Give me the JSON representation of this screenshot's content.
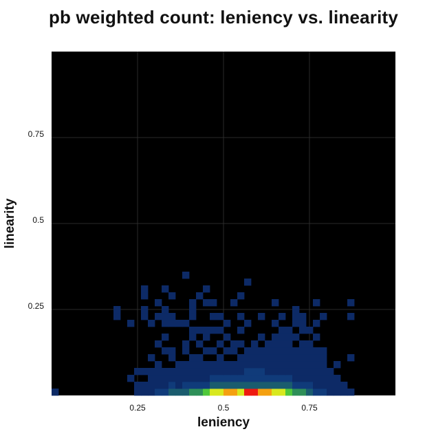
{
  "chart_data": {
    "type": "heatmap",
    "title": "pb weighted count: leniency vs. linearity",
    "xlabel": "leniency",
    "ylabel": "linearity",
    "xlim": [
      0,
      1
    ],
    "ylim": [
      0,
      1
    ],
    "x_ticks": [
      "0.25",
      "0.5",
      "0.75"
    ],
    "y_ticks": [
      "0.25",
      "0.5",
      "0.75"
    ],
    "grid": true,
    "background": "#000000",
    "bin_size": 0.02,
    "colorscale": [
      "#0d2a66",
      "#103b7a",
      "#1a5c6e",
      "#2e8f58",
      "#4fc83a",
      "#d8e81e",
      "#f4a010",
      "#ee1a10"
    ],
    "cells": [
      [
        0,
        0,
        1
      ],
      [
        12,
        0,
        1
      ],
      [
        13,
        0,
        1
      ],
      [
        14,
        0,
        1
      ],
      [
        15,
        0,
        2
      ],
      [
        16,
        0,
        2
      ],
      [
        17,
        0,
        3
      ],
      [
        18,
        0,
        3
      ],
      [
        19,
        0,
        3
      ],
      [
        20,
        0,
        4
      ],
      [
        21,
        0,
        4
      ],
      [
        22,
        0,
        5
      ],
      [
        23,
        0,
        6
      ],
      [
        24,
        0,
        6
      ],
      [
        25,
        0,
        7
      ],
      [
        26,
        0,
        7
      ],
      [
        27,
        0,
        6
      ],
      [
        28,
        0,
        8
      ],
      [
        29,
        0,
        8
      ],
      [
        30,
        0,
        7
      ],
      [
        31,
        0,
        7
      ],
      [
        32,
        0,
        6
      ],
      [
        33,
        0,
        6
      ],
      [
        34,
        0,
        5
      ],
      [
        35,
        0,
        4
      ],
      [
        36,
        0,
        4
      ],
      [
        37,
        0,
        3
      ],
      [
        38,
        0,
        2
      ],
      [
        39,
        0,
        2
      ],
      [
        40,
        0,
        1
      ],
      [
        41,
        0,
        1
      ],
      [
        42,
        0,
        1
      ],
      [
        43,
        0,
        1
      ],
      [
        12,
        1,
        1
      ],
      [
        13,
        1,
        1
      ],
      [
        14,
        1,
        1
      ],
      [
        15,
        1,
        1
      ],
      [
        16,
        1,
        1
      ],
      [
        17,
        1,
        2
      ],
      [
        18,
        1,
        1
      ],
      [
        19,
        1,
        2
      ],
      [
        20,
        1,
        2
      ],
      [
        21,
        1,
        2
      ],
      [
        22,
        1,
        2
      ],
      [
        23,
        1,
        3
      ],
      [
        24,
        1,
        3
      ],
      [
        25,
        1,
        3
      ],
      [
        26,
        1,
        3
      ],
      [
        27,
        1,
        3
      ],
      [
        28,
        1,
        3
      ],
      [
        29,
        1,
        3
      ],
      [
        30,
        1,
        3
      ],
      [
        31,
        1,
        3
      ],
      [
        32,
        1,
        3
      ],
      [
        33,
        1,
        3
      ],
      [
        34,
        1,
        3
      ],
      [
        35,
        1,
        2
      ],
      [
        36,
        1,
        2
      ],
      [
        37,
        1,
        2
      ],
      [
        38,
        1,
        1
      ],
      [
        39,
        1,
        1
      ],
      [
        40,
        1,
        1
      ],
      [
        41,
        1,
        1
      ],
      [
        42,
        1,
        1
      ],
      [
        11,
        2,
        1
      ],
      [
        14,
        2,
        1
      ],
      [
        15,
        2,
        1
      ],
      [
        16,
        2,
        1
      ],
      [
        17,
        2,
        1
      ],
      [
        18,
        2,
        1
      ],
      [
        19,
        2,
        1
      ],
      [
        20,
        2,
        1
      ],
      [
        21,
        2,
        1
      ],
      [
        22,
        2,
        1
      ],
      [
        23,
        2,
        2
      ],
      [
        24,
        2,
        2
      ],
      [
        25,
        2,
        2
      ],
      [
        26,
        2,
        2
      ],
      [
        27,
        2,
        2
      ],
      [
        28,
        2,
        2
      ],
      [
        29,
        2,
        2
      ],
      [
        30,
        2,
        2
      ],
      [
        31,
        2,
        2
      ],
      [
        32,
        2,
        2
      ],
      [
        33,
        2,
        2
      ],
      [
        34,
        2,
        2
      ],
      [
        35,
        2,
        1
      ],
      [
        36,
        2,
        1
      ],
      [
        37,
        2,
        1
      ],
      [
        38,
        2,
        1
      ],
      [
        39,
        2,
        1
      ],
      [
        40,
        2,
        1
      ],
      [
        41,
        2,
        1
      ],
      [
        12,
        3,
        1
      ],
      [
        13,
        3,
        1
      ],
      [
        14,
        3,
        1
      ],
      [
        15,
        3,
        1
      ],
      [
        16,
        3,
        1
      ],
      [
        17,
        3,
        1
      ],
      [
        18,
        3,
        1
      ],
      [
        19,
        3,
        1
      ],
      [
        20,
        3,
        1
      ],
      [
        21,
        3,
        1
      ],
      [
        22,
        3,
        1
      ],
      [
        23,
        3,
        1
      ],
      [
        24,
        3,
        1
      ],
      [
        25,
        3,
        1
      ],
      [
        26,
        3,
        1
      ],
      [
        27,
        3,
        1
      ],
      [
        28,
        3,
        2
      ],
      [
        29,
        3,
        2
      ],
      [
        30,
        3,
        2
      ],
      [
        31,
        3,
        1
      ],
      [
        32,
        3,
        1
      ],
      [
        33,
        3,
        1
      ],
      [
        34,
        3,
        1
      ],
      [
        35,
        3,
        1
      ],
      [
        36,
        3,
        1
      ],
      [
        37,
        3,
        1
      ],
      [
        38,
        3,
        1
      ],
      [
        39,
        3,
        1
      ],
      [
        40,
        3,
        1
      ],
      [
        15,
        4,
        1
      ],
      [
        18,
        4,
        1
      ],
      [
        19,
        4,
        1
      ],
      [
        20,
        4,
        1
      ],
      [
        21,
        4,
        1
      ],
      [
        22,
        4,
        1
      ],
      [
        23,
        4,
        1
      ],
      [
        24,
        4,
        1
      ],
      [
        25,
        4,
        1
      ],
      [
        26,
        4,
        1
      ],
      [
        27,
        4,
        1
      ],
      [
        28,
        4,
        1
      ],
      [
        29,
        4,
        1
      ],
      [
        30,
        4,
        1
      ],
      [
        31,
        4,
        1
      ],
      [
        32,
        4,
        1
      ],
      [
        33,
        4,
        1
      ],
      [
        34,
        4,
        1
      ],
      [
        35,
        4,
        1
      ],
      [
        36,
        4,
        1
      ],
      [
        37,
        4,
        1
      ],
      [
        38,
        4,
        1
      ],
      [
        39,
        4,
        1
      ],
      [
        41,
        4,
        1
      ],
      [
        14,
        5,
        1
      ],
      [
        17,
        5,
        1
      ],
      [
        20,
        5,
        1
      ],
      [
        21,
        5,
        1
      ],
      [
        24,
        5,
        1
      ],
      [
        27,
        5,
        1
      ],
      [
        28,
        5,
        1
      ],
      [
        29,
        5,
        1
      ],
      [
        30,
        5,
        1
      ],
      [
        31,
        5,
        1
      ],
      [
        32,
        5,
        1
      ],
      [
        33,
        5,
        1
      ],
      [
        34,
        5,
        1
      ],
      [
        35,
        5,
        1
      ],
      [
        36,
        5,
        1
      ],
      [
        37,
        5,
        1
      ],
      [
        38,
        5,
        1
      ],
      [
        39,
        5,
        1
      ],
      [
        43,
        5,
        1
      ],
      [
        16,
        6,
        1
      ],
      [
        17,
        6,
        1
      ],
      [
        19,
        6,
        1
      ],
      [
        22,
        6,
        1
      ],
      [
        23,
        6,
        1
      ],
      [
        25,
        6,
        1
      ],
      [
        26,
        6,
        1
      ],
      [
        28,
        6,
        1
      ],
      [
        29,
        6,
        1
      ],
      [
        30,
        6,
        1
      ],
      [
        31,
        6,
        1
      ],
      [
        32,
        6,
        1
      ],
      [
        33,
        6,
        1
      ],
      [
        34,
        6,
        1
      ],
      [
        35,
        6,
        1
      ],
      [
        36,
        6,
        1
      ],
      [
        37,
        6,
        1
      ],
      [
        38,
        6,
        1
      ],
      [
        39,
        6,
        1
      ],
      [
        15,
        7,
        1
      ],
      [
        19,
        7,
        1
      ],
      [
        21,
        7,
        1
      ],
      [
        24,
        7,
        1
      ],
      [
        26,
        7,
        1
      ],
      [
        27,
        7,
        1
      ],
      [
        29,
        7,
        1
      ],
      [
        31,
        7,
        1
      ],
      [
        32,
        7,
        1
      ],
      [
        33,
        7,
        1
      ],
      [
        34,
        7,
        1
      ],
      [
        36,
        7,
        1
      ],
      [
        37,
        7,
        1
      ],
      [
        16,
        8,
        1
      ],
      [
        20,
        8,
        1
      ],
      [
        22,
        8,
        1
      ],
      [
        25,
        8,
        1
      ],
      [
        30,
        8,
        1
      ],
      [
        32,
        8,
        1
      ],
      [
        33,
        8,
        1
      ],
      [
        34,
        8,
        1
      ],
      [
        35,
        8,
        1
      ],
      [
        38,
        8,
        1
      ],
      [
        20,
        9,
        1
      ],
      [
        21,
        9,
        1
      ],
      [
        22,
        9,
        1
      ],
      [
        23,
        9,
        1
      ],
      [
        24,
        9,
        1
      ],
      [
        27,
        9,
        1
      ],
      [
        33,
        9,
        1
      ],
      [
        34,
        9,
        1
      ],
      [
        36,
        9,
        1
      ],
      [
        37,
        9,
        1
      ],
      [
        11,
        10,
        1
      ],
      [
        14,
        10,
        1
      ],
      [
        16,
        10,
        1
      ],
      [
        17,
        10,
        1
      ],
      [
        18,
        10,
        1
      ],
      [
        19,
        10,
        1
      ],
      [
        25,
        10,
        1
      ],
      [
        28,
        10,
        1
      ],
      [
        32,
        10,
        1
      ],
      [
        35,
        10,
        1
      ],
      [
        36,
        10,
        1
      ],
      [
        38,
        10,
        1
      ],
      [
        9,
        11,
        1
      ],
      [
        13,
        11,
        1
      ],
      [
        15,
        11,
        1
      ],
      [
        16,
        11,
        1
      ],
      [
        17,
        11,
        1
      ],
      [
        20,
        11,
        1
      ],
      [
        23,
        11,
        1
      ],
      [
        24,
        11,
        1
      ],
      [
        27,
        11,
        1
      ],
      [
        30,
        11,
        1
      ],
      [
        33,
        11,
        1
      ],
      [
        35,
        11,
        1
      ],
      [
        36,
        11,
        1
      ],
      [
        39,
        11,
        1
      ],
      [
        43,
        11,
        1
      ],
      [
        9,
        12,
        1
      ],
      [
        13,
        12,
        1
      ],
      [
        16,
        12,
        1
      ],
      [
        20,
        12,
        1
      ],
      [
        35,
        12,
        1
      ],
      [
        15,
        13,
        1
      ],
      [
        20,
        13,
        1
      ],
      [
        22,
        13,
        1
      ],
      [
        23,
        13,
        1
      ],
      [
        26,
        13,
        1
      ],
      [
        32,
        13,
        1
      ],
      [
        38,
        13,
        1
      ],
      [
        43,
        13,
        1
      ],
      [
        13,
        14,
        1
      ],
      [
        17,
        14,
        1
      ],
      [
        21,
        14,
        1
      ],
      [
        27,
        14,
        1
      ],
      [
        13,
        15,
        1
      ],
      [
        16,
        15,
        1
      ],
      [
        22,
        15,
        1
      ],
      [
        28,
        16,
        1
      ],
      [
        19,
        17,
        1
      ]
    ]
  }
}
